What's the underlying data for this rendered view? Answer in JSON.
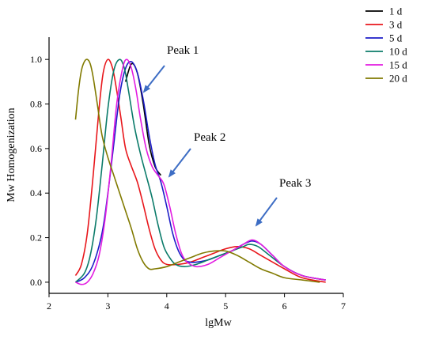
{
  "chart_data": {
    "type": "line",
    "title": "",
    "xlabel": "lgMw",
    "ylabel": "Mw Homogenization",
    "xlim": [
      2,
      7
    ],
    "ylim": [
      -0.05,
      1.1
    ],
    "x_ticks": [
      2,
      3,
      4,
      5,
      6,
      7
    ],
    "y_ticks": [
      0.0,
      0.2,
      0.4,
      0.6,
      0.8,
      1.0
    ],
    "x_tick_labels": [
      "2",
      "3",
      "4",
      "5",
      "6",
      "7"
    ],
    "y_tick_labels": [
      "0.0",
      "0.2",
      "0.4",
      "0.6",
      "0.8",
      "1.0"
    ],
    "grid": false,
    "legend_position": "top-right",
    "series": [
      {
        "name": "1 d",
        "color": "#000000",
        "x": [
          3.3,
          3.4,
          3.5,
          3.6,
          3.7,
          3.8,
          3.9
        ],
        "y": [
          0.9,
          0.98,
          0.94,
          0.8,
          0.62,
          0.52,
          0.48
        ]
      },
      {
        "name": "3 d",
        "color": "#e8161b",
        "x": [
          2.45,
          2.55,
          2.65,
          2.75,
          2.85,
          2.92,
          3.0,
          3.08,
          3.15,
          3.22,
          3.3,
          3.4,
          3.5,
          3.6,
          3.7,
          3.8,
          3.9,
          4.0,
          4.2,
          4.4,
          4.6,
          4.8,
          5.0,
          5.2,
          5.4,
          5.6,
          5.8,
          6.0,
          6.3,
          6.7
        ],
        "y": [
          0.03,
          0.08,
          0.22,
          0.48,
          0.78,
          0.94,
          1.0,
          0.96,
          0.86,
          0.74,
          0.6,
          0.52,
          0.45,
          0.35,
          0.24,
          0.15,
          0.1,
          0.08,
          0.08,
          0.09,
          0.11,
          0.13,
          0.15,
          0.16,
          0.15,
          0.12,
          0.09,
          0.06,
          0.02,
          0.0
        ]
      },
      {
        "name": "5 d",
        "color": "#1c1cc7",
        "x": [
          2.45,
          2.6,
          2.75,
          2.9,
          3.0,
          3.1,
          3.2,
          3.3,
          3.4,
          3.5,
          3.6,
          3.7,
          3.8,
          3.9,
          4.0,
          4.1,
          4.2,
          4.3,
          4.4,
          4.5,
          4.7,
          4.9,
          5.1,
          5.3,
          5.45,
          5.6,
          5.8,
          6.0,
          6.3,
          6.7
        ],
        "y": [
          0.0,
          0.02,
          0.08,
          0.22,
          0.4,
          0.62,
          0.84,
          0.96,
          0.99,
          0.94,
          0.82,
          0.66,
          0.53,
          0.45,
          0.34,
          0.22,
          0.14,
          0.1,
          0.09,
          0.09,
          0.1,
          0.12,
          0.14,
          0.17,
          0.185,
          0.17,
          0.12,
          0.07,
          0.03,
          0.01
        ]
      },
      {
        "name": "10 d",
        "color": "#0b7b6a",
        "x": [
          2.45,
          2.6,
          2.7,
          2.8,
          2.9,
          3.0,
          3.1,
          3.2,
          3.28,
          3.35,
          3.45,
          3.55,
          3.65,
          3.75,
          3.85,
          3.95,
          4.05,
          4.15,
          4.3,
          4.5,
          4.7,
          4.9,
          5.1,
          5.3,
          5.4,
          5.55,
          5.75,
          6.0,
          6.3,
          6.7
        ],
        "y": [
          0.0,
          0.04,
          0.12,
          0.28,
          0.52,
          0.78,
          0.95,
          1.0,
          0.96,
          0.86,
          0.7,
          0.58,
          0.48,
          0.38,
          0.26,
          0.16,
          0.11,
          0.08,
          0.07,
          0.08,
          0.1,
          0.12,
          0.14,
          0.16,
          0.17,
          0.16,
          0.12,
          0.07,
          0.03,
          0.01
        ]
      },
      {
        "name": "15 d",
        "color": "#e21ce1",
        "x": [
          2.45,
          2.55,
          2.65,
          2.75,
          2.85,
          2.95,
          3.05,
          3.15,
          3.25,
          3.32,
          3.4,
          3.48,
          3.55,
          3.65,
          3.75,
          3.85,
          3.95,
          4.05,
          4.15,
          4.25,
          4.35,
          4.5,
          4.7,
          4.9,
          5.1,
          5.3,
          5.45,
          5.6,
          5.8,
          6.0,
          6.3,
          6.7
        ],
        "y": [
          0.0,
          -0.01,
          0.0,
          0.04,
          0.12,
          0.28,
          0.52,
          0.8,
          0.96,
          1.0,
          0.96,
          0.86,
          0.74,
          0.6,
          0.52,
          0.48,
          0.44,
          0.34,
          0.22,
          0.13,
          0.09,
          0.07,
          0.08,
          0.11,
          0.14,
          0.17,
          0.19,
          0.17,
          0.12,
          0.07,
          0.03,
          0.01
        ]
      },
      {
        "name": "20 d",
        "color": "#817a00",
        "x": [
          2.45,
          2.5,
          2.55,
          2.6,
          2.65,
          2.7,
          2.75,
          2.82,
          2.9,
          3.0,
          3.1,
          3.2,
          3.3,
          3.4,
          3.5,
          3.6,
          3.7,
          3.8,
          4.0,
          4.2,
          4.4,
          4.6,
          4.8,
          5.0,
          5.2,
          5.4,
          5.6,
          5.8,
          6.0,
          6.3,
          6.6
        ],
        "y": [
          0.73,
          0.86,
          0.95,
          0.99,
          1.0,
          0.98,
          0.92,
          0.8,
          0.66,
          0.56,
          0.48,
          0.4,
          0.32,
          0.24,
          0.15,
          0.09,
          0.06,
          0.06,
          0.07,
          0.09,
          0.11,
          0.13,
          0.14,
          0.14,
          0.12,
          0.09,
          0.06,
          0.04,
          0.02,
          0.01,
          0.0
        ]
      }
    ],
    "annotations": [
      {
        "label": "Peak 1"
      },
      {
        "label": "Peak 2"
      },
      {
        "label": "Peak 3"
      }
    ],
    "annotation_arrow_color": "#3d6dc4"
  }
}
